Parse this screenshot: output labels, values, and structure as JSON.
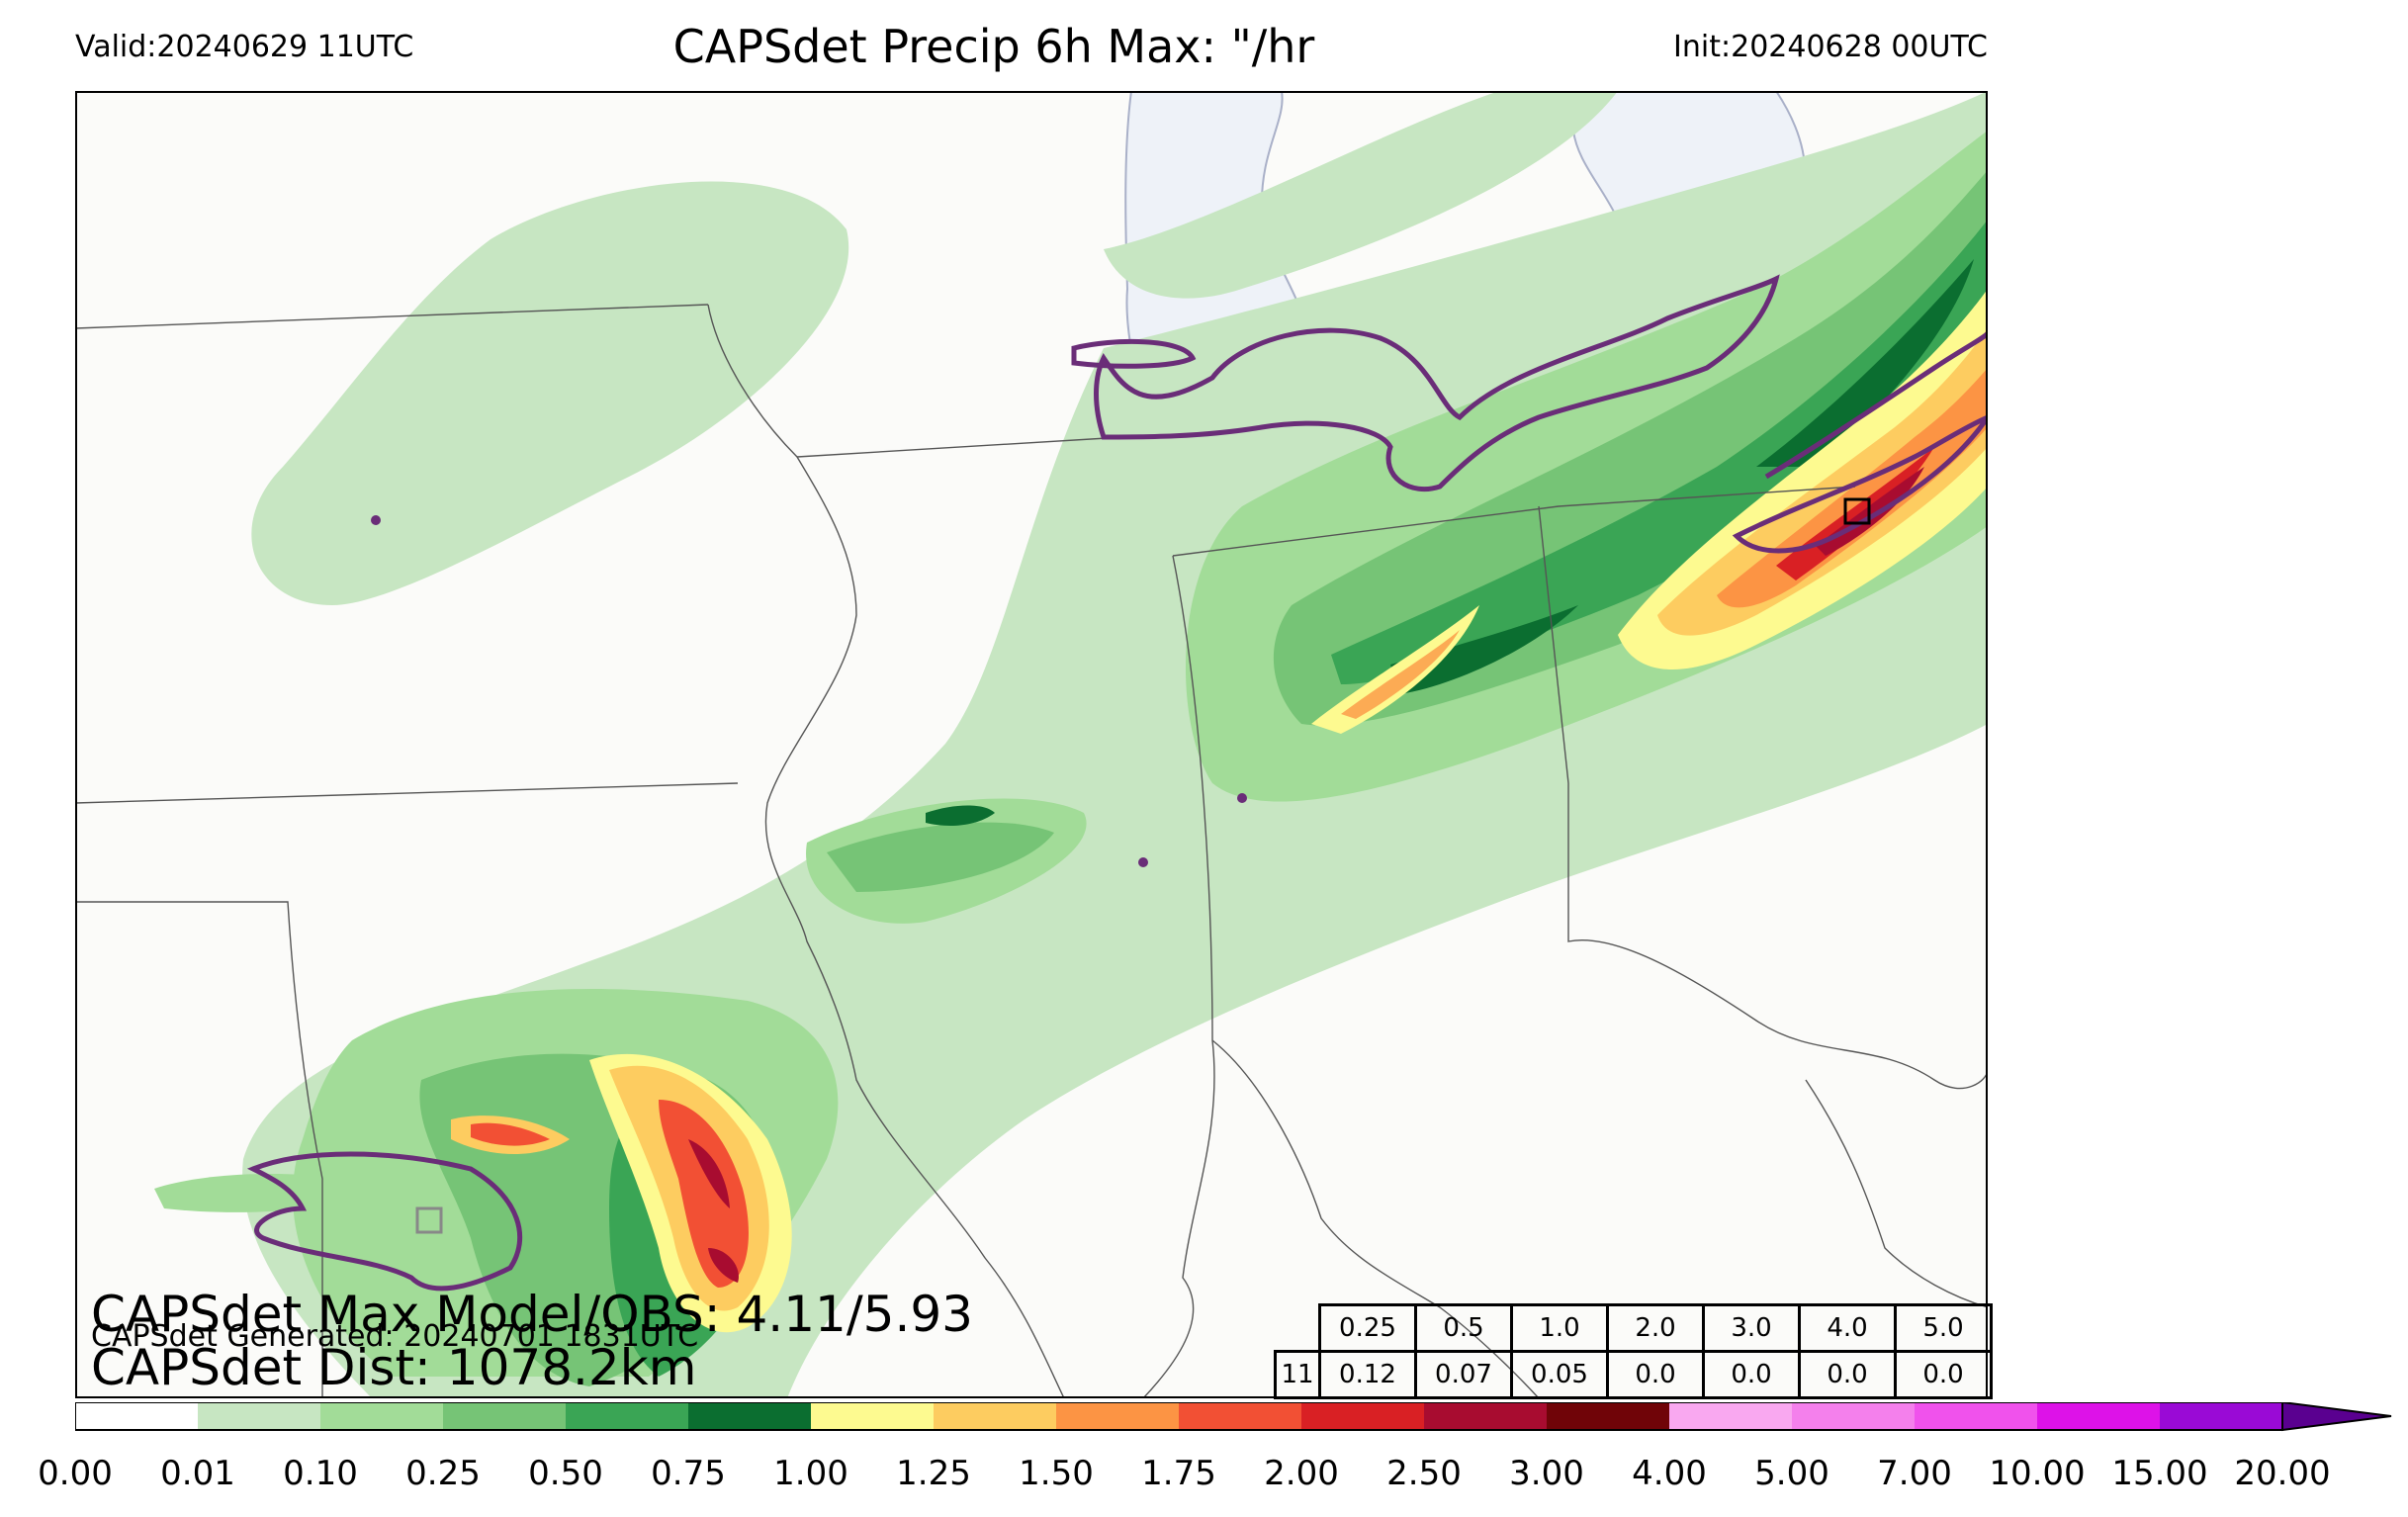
{
  "header": {
    "valid": "Valid:20240629 11UTC",
    "title": "CAPSdet Precip 6h Max: \"/hr",
    "init": "Init:20240628 00UTC"
  },
  "stats": {
    "max_model_obs": "CAPSdet Max Model/OBS: 4.11/5.93",
    "generated": "CAPSdet Generated: 20240701 1831UTC",
    "distance": "CAPSdet Dist: 1078.2km"
  },
  "threshold_table": {
    "thresholds": [
      "0.25",
      "0.5",
      "1.0",
      "2.0",
      "3.0",
      "4.0",
      "5.0"
    ],
    "row_label": "11",
    "values": [
      "0.12",
      "0.07",
      "0.05",
      "0.0",
      "0.0",
      "0.0",
      "0.0"
    ]
  },
  "colorbar": {
    "ticks": [
      "0.00",
      "0.01",
      "0.10",
      "0.25",
      "0.50",
      "0.75",
      "1.00",
      "1.25",
      "1.50",
      "1.75",
      "2.00",
      "2.50",
      "3.00",
      "4.00",
      "5.00",
      "7.00",
      "10.00",
      "15.00",
      "20.00"
    ],
    "colors": [
      "#ffffff",
      "#c7e6c2",
      "#a2dc98",
      "#76c476",
      "#3aa555",
      "#0b6e30",
      "#fdfa90",
      "#fdcc60",
      "#fc9444",
      "#f25034",
      "#d92024",
      "#a80c30",
      "#700408",
      "#f9a8f0",
      "#f480ec",
      "#f052ec",
      "#dd12e8",
      "#9a0ad6"
    ],
    "extend_color": "#5a0090"
  },
  "map_colors": {
    "background": "#fbfbf9",
    "lake": "#eef2f8",
    "obs_contour": "#6a2d78"
  }
}
